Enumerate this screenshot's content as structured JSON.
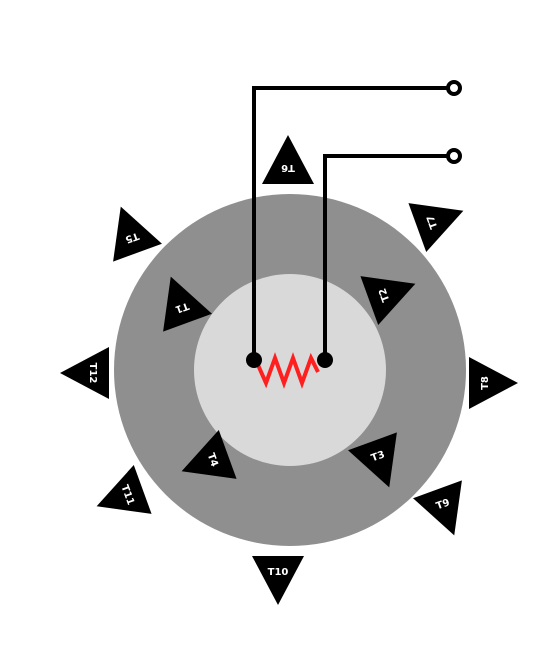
{
  "colors": {
    "background": "#ffffff",
    "outer_ring": "#8f8f8f",
    "inner_disc": "#d9d9d9",
    "marker": "#000000",
    "marker_label": "#ffffff",
    "wire": "#000000",
    "heater": "#ff1f1f"
  },
  "markers": [
    {
      "id": "T1",
      "label": "T1"
    },
    {
      "id": "T2",
      "label": "T2"
    },
    {
      "id": "T3",
      "label": "T3"
    },
    {
      "id": "T4",
      "label": "T4"
    },
    {
      "id": "T5",
      "label": "T5"
    },
    {
      "id": "T6",
      "label": "T6"
    },
    {
      "id": "T7",
      "label": "T7"
    },
    {
      "id": "T8",
      "label": "T8"
    },
    {
      "id": "T9",
      "label": "T9"
    },
    {
      "id": "T10",
      "label": "T10"
    },
    {
      "id": "T11",
      "label": "T11"
    },
    {
      "id": "T12",
      "label": "T12"
    }
  ],
  "heater": {
    "icon": "zigzag-resistor-icon"
  },
  "terminals": {
    "icon": "open-circle-terminal-icon",
    "count": 2
  }
}
